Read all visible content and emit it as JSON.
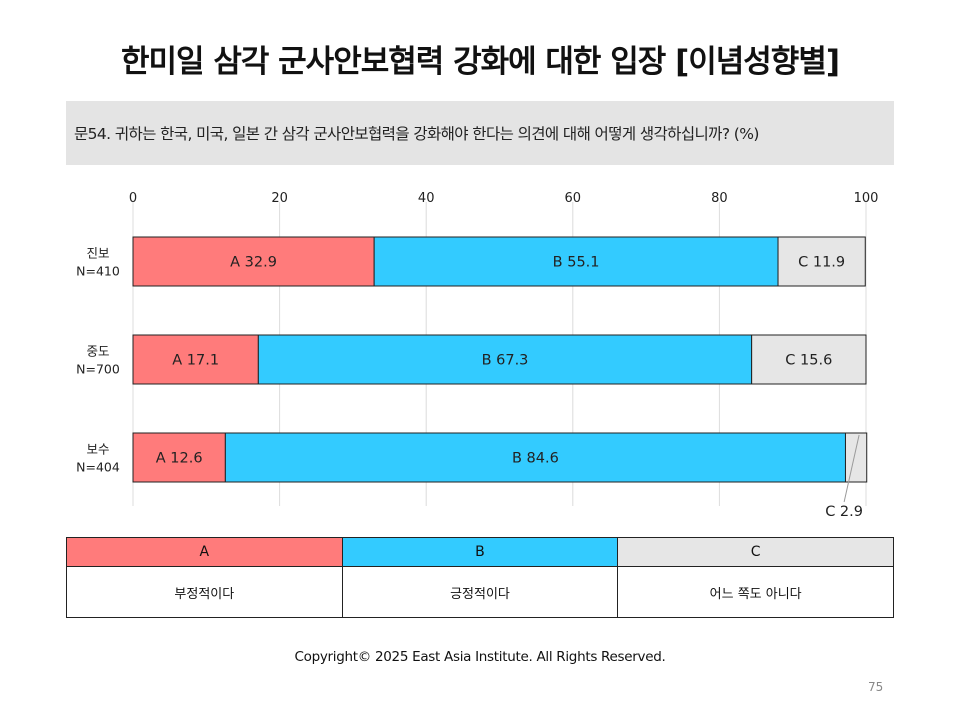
{
  "title": "한미일 삼각 군사안보협력 강화에 대한 입장 [이념성향별]",
  "question": "문54. 귀하는 한국, 미국, 일본 간 삼각 군사안보협력을 강화해야 한다는 의견에 대해 어떻게 생각하십니까? (%)",
  "colors": {
    "A": "#ff7b7b",
    "B": "#33cbff",
    "C": "#e6e6e6"
  },
  "chart_data": {
    "type": "bar",
    "orientation": "horizontal",
    "stacked": true,
    "xlim": [
      0,
      100
    ],
    "xticks": [
      0,
      20,
      40,
      60,
      80,
      100
    ],
    "grid": true,
    "categories": [
      {
        "group": "진보",
        "n": "N=410"
      },
      {
        "group": "중도",
        "n": "N=700"
      },
      {
        "group": "보수",
        "n": "N=404"
      }
    ],
    "series": [
      {
        "name": "A",
        "values": [
          32.9,
          17.1,
          12.6
        ]
      },
      {
        "name": "B",
        "values": [
          55.1,
          67.3,
          84.6
        ]
      },
      {
        "name": "C",
        "values": [
          11.9,
          15.6,
          2.9
        ]
      }
    ]
  },
  "legend": [
    {
      "key": "A",
      "label": "부정적이다"
    },
    {
      "key": "B",
      "label": "긍정적이다"
    },
    {
      "key": "C",
      "label": "어느 쪽도 아니다"
    }
  ],
  "copyright": "Copyright© 2025 East Asia Institute. All Rights Reserved.",
  "page_number": "75"
}
